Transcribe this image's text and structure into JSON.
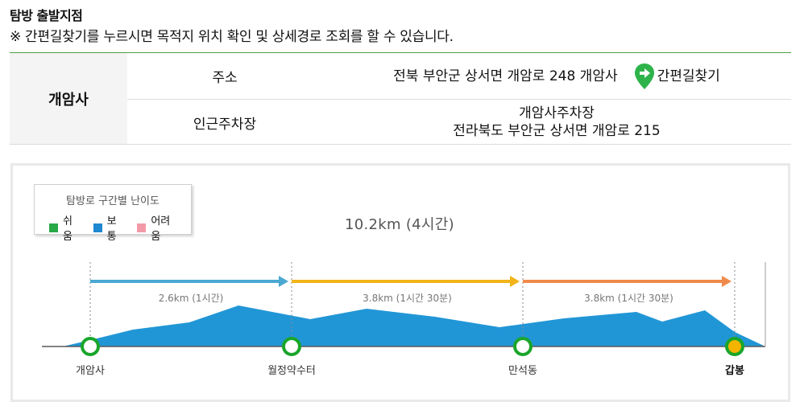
{
  "heading": "탐방 출발지점",
  "notice": "※ 간편길찾기를 누르시면 목적지 위치 확인 및 상세경로 조회를 할 수 있습니다.",
  "table": {
    "place": "개암사",
    "rows": [
      {
        "label": "주소",
        "value_lines": [
          "전북 부안군 상서면 개암로 248 개암사"
        ],
        "link": "간편길찾기"
      },
      {
        "label": "인근주차장",
        "value_lines": [
          "개암사주차장",
          "전라북도 부안군 상서면 개암로 215"
        ]
      }
    ]
  },
  "legend": {
    "title": "탐방로 구간별 난이도",
    "items": [
      {
        "label": "쉬움",
        "color": "#29a847"
      },
      {
        "label": "보통",
        "color": "#1e88d0"
      },
      {
        "label": "어려움",
        "color": "#f29aa8"
      }
    ]
  },
  "route": {
    "total": "10.2km (4시간)",
    "segments": [
      {
        "label": "2.6km (1시간)",
        "color": "#4ba8d2"
      },
      {
        "label": "3.8km (1시간 30분)",
        "color": "#f2b418"
      },
      {
        "label": "3.8km (1시간 30분)",
        "color": "#f08a4b"
      }
    ],
    "stops": [
      {
        "name": "개암사",
        "bold": false
      },
      {
        "name": "월정약수터",
        "bold": false
      },
      {
        "name": "만석동",
        "bold": false
      },
      {
        "name": "갑봉",
        "bold": true
      }
    ],
    "terrain_color": "#2196d6",
    "stop_ring_color": "#1aa62b",
    "destination_fill": "#f5b400",
    "nav_icon_color": "#2db34a"
  }
}
